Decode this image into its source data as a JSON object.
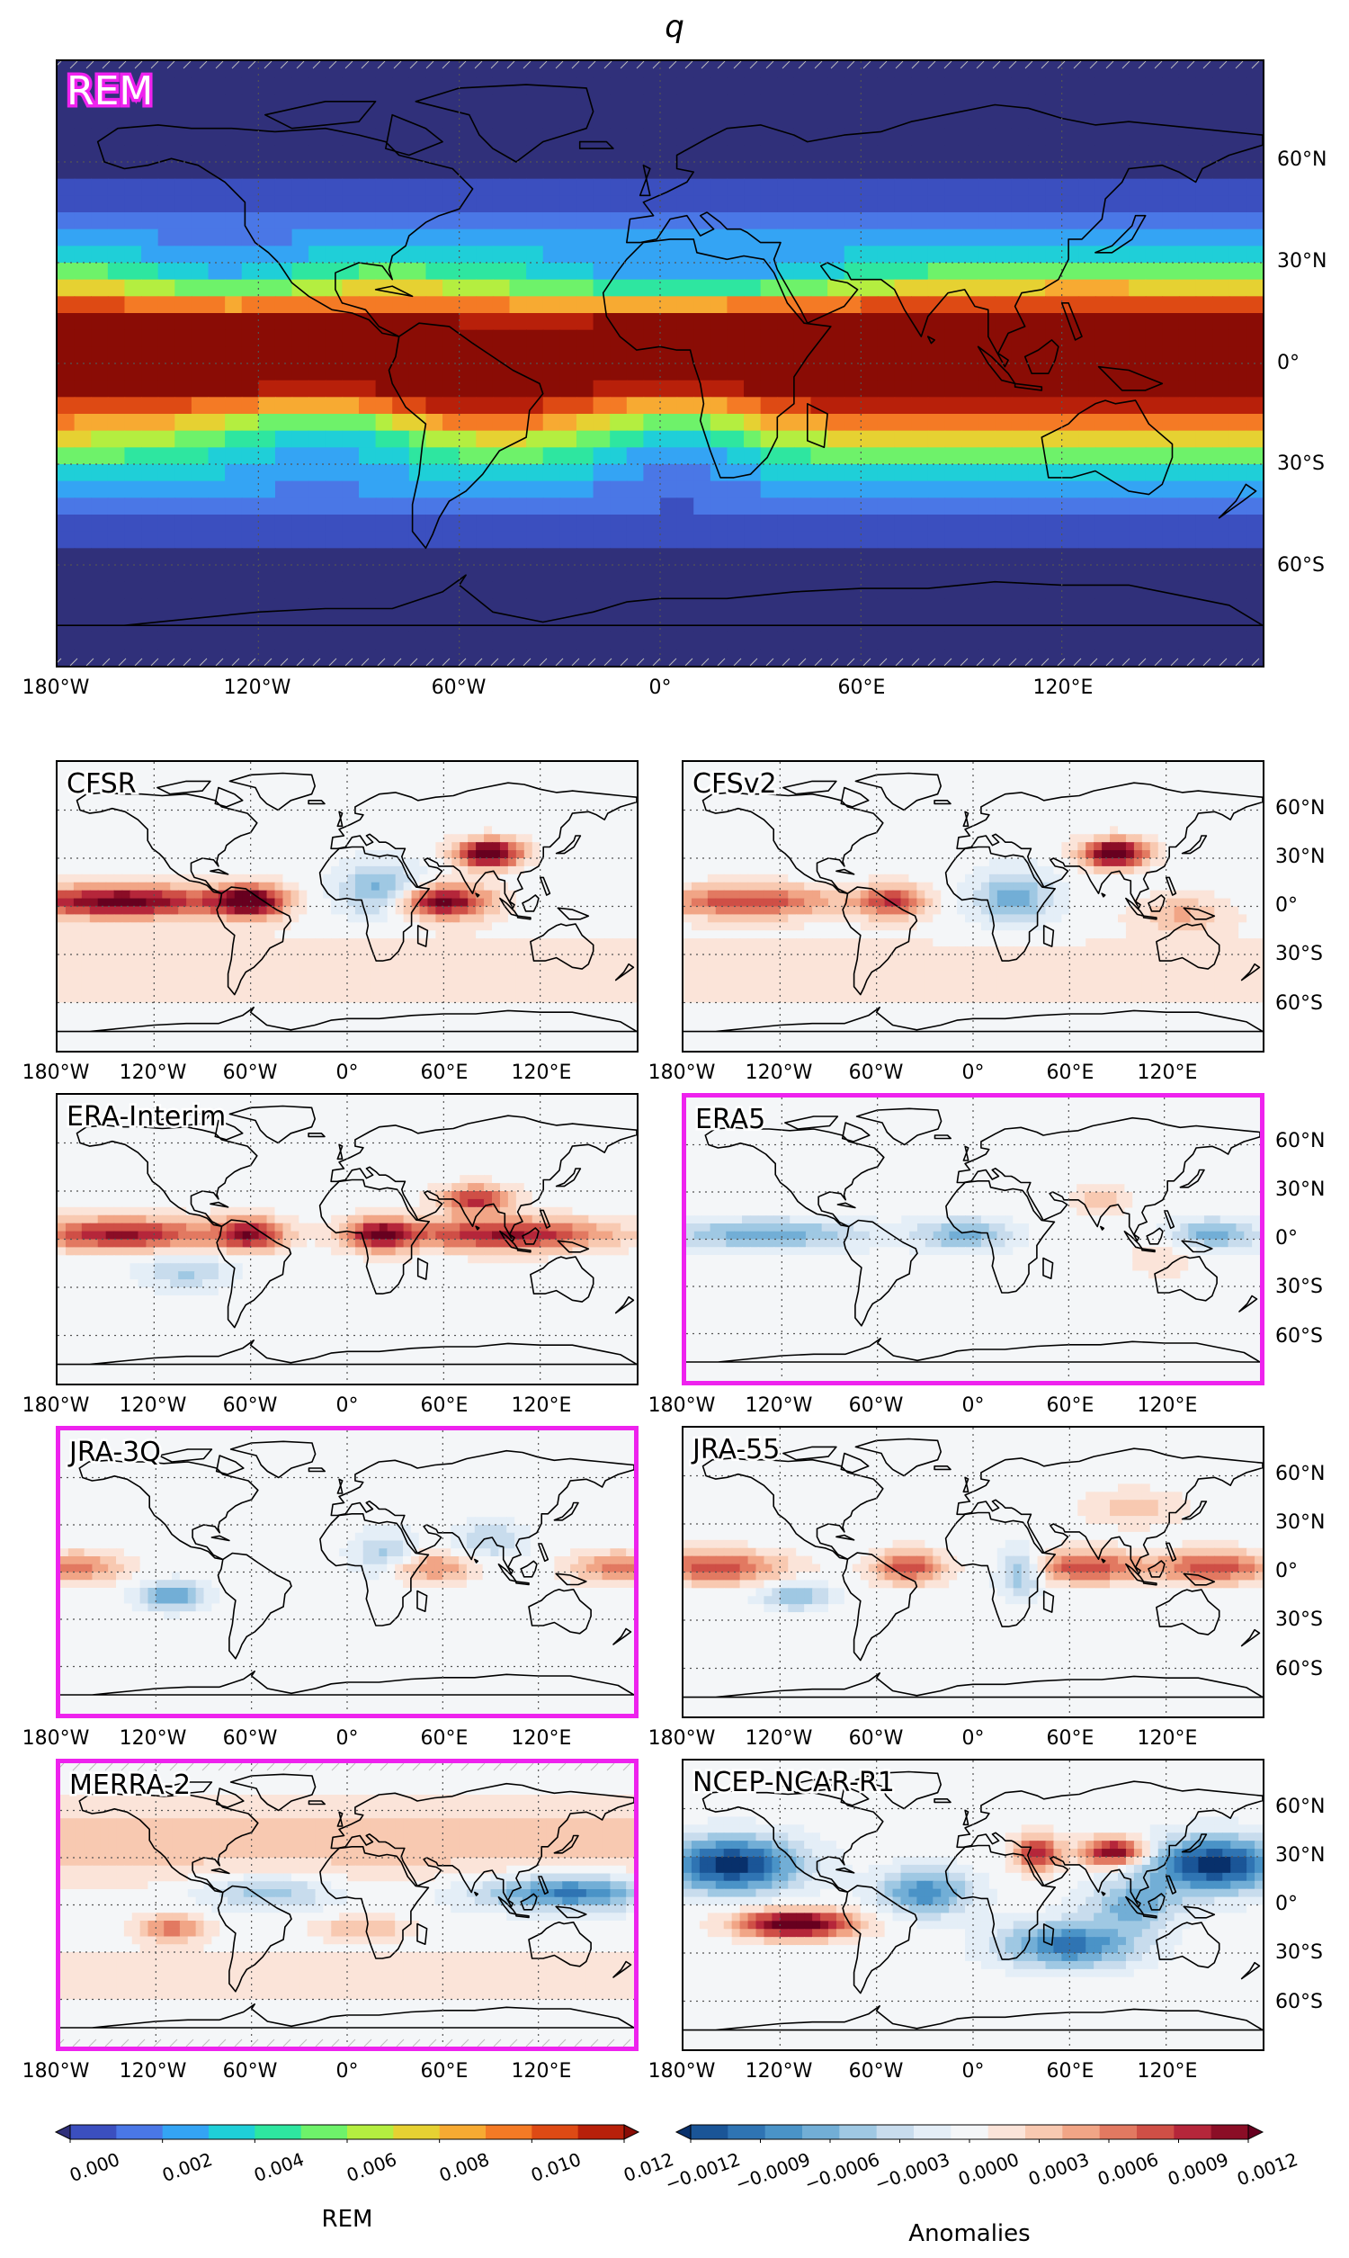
{
  "title": "q",
  "main_panel": {
    "label": "REM"
  },
  "panels": [
    {
      "label": "CFSR",
      "highlight": false
    },
    {
      "label": "CFSv2",
      "highlight": false
    },
    {
      "label": "ERA-Interim",
      "highlight": false
    },
    {
      "label": "ERA5",
      "highlight": true
    },
    {
      "label": "JRA-3Q",
      "highlight": true
    },
    {
      "label": "JRA-55",
      "highlight": false
    },
    {
      "label": "MERRA-2",
      "highlight": true
    },
    {
      "label": "NCEP-NCAR-R1",
      "highlight": false
    }
  ],
  "lon_ticks": [
    "180°W",
    "120°W",
    "60°W",
    "0°",
    "60°E",
    "120°E"
  ],
  "lat_ticks": [
    "60°N",
    "30°N",
    "0°",
    "30°S",
    "60°S"
  ],
  "colorbar_rem": {
    "title": "REM",
    "ticks": [
      "0.000",
      "0.002",
      "0.004",
      "0.006",
      "0.008",
      "0.010",
      "0.012"
    ],
    "colors": [
      "#30307a",
      "#3b4fbf",
      "#4a77e6",
      "#34a4f4",
      "#1fcfd8",
      "#2ee6a0",
      "#6ef26a",
      "#b4ee40",
      "#e6d132",
      "#f7aa32",
      "#f47a25",
      "#de4a14",
      "#b8200a",
      "#8a0c05"
    ]
  },
  "colorbar_anom": {
    "title": "Anomalies",
    "ticks": [
      "−0.0012",
      "−0.0009",
      "−0.0006",
      "−0.0003",
      "0.0000",
      "0.0003",
      "0.0006",
      "0.0009",
      "0.0012"
    ],
    "colors": [
      "#08306b",
      "#1a5597",
      "#2f74b3",
      "#4a93c7",
      "#72aed6",
      "#9fc8e3",
      "#c8dced",
      "#e4eef7",
      "#f4f6f8",
      "#fbe4d9",
      "#f8c9b1",
      "#f1a586",
      "#e27961",
      "#cf4f46",
      "#b5263a",
      "#8b0d26",
      "#67001f"
    ]
  },
  "highlight_color": "#ee22ee"
}
